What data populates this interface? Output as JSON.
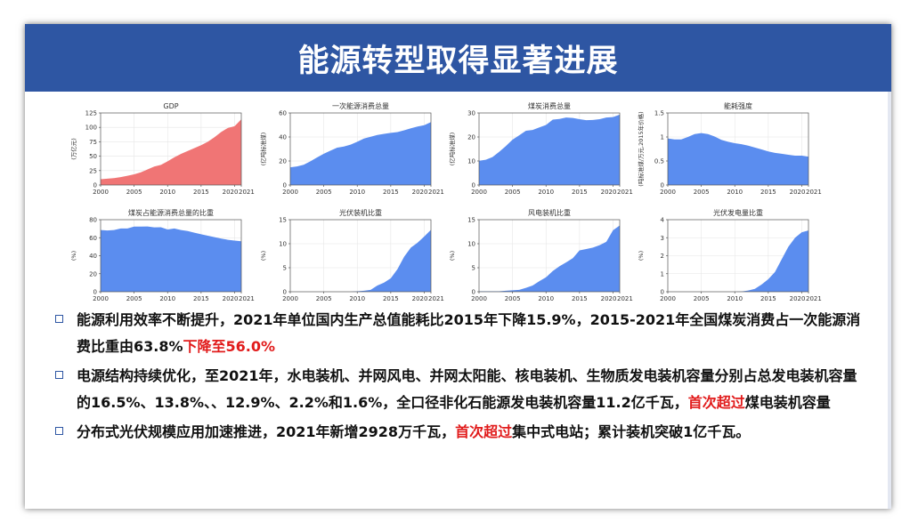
{
  "title": "能源转型取得显著进展",
  "bullets": [
    {
      "segments": [
        "能源利用效率不断提升，2021年单位国内生产总值能耗比2015年下降15.9%，2015-2021年全国煤炭消费占一次能源消费比重由63.8%",
        "下降至56.0%",
        ""
      ]
    },
    {
      "segments": [
        "电源结构持续优化，至2021年，水电装机、并网风电、并网太阳能、核电装机、生物质发电装机容量分别占总发电装机容量的16.5%、13.8%、、12.9%、2.2%和1.6%，全口径非化石能源发电装机容量11.2亿千瓦，",
        "首次超过",
        "煤电装机容量"
      ]
    },
    {
      "segments": [
        "分布式光伏规模应用加速推进，2021年新增2928万千瓦，",
        "首次超过",
        "集中式电站；累计装机突破1亿千瓦。"
      ]
    }
  ],
  "colors": {
    "title_bg": "#2e56a3",
    "gdp_fill": "#f07575",
    "area_fill": "#5b8def",
    "highlight": "#e11b1b"
  },
  "chart_data": [
    {
      "type": "area",
      "title": "GDP",
      "ylabel": "(万亿元)",
      "ylim": [
        0,
        125
      ],
      "yticks": [
        0,
        25,
        50,
        75,
        100,
        125
      ],
      "xticks": [
        "2000",
        "2005",
        "2010",
        "2015",
        "2020",
        "2021"
      ],
      "color": "#f07575",
      "x": [
        2000,
        2001,
        2002,
        2003,
        2004,
        2005,
        2006,
        2007,
        2008,
        2009,
        2010,
        2011,
        2012,
        2013,
        2014,
        2015,
        2016,
        2017,
        2018,
        2019,
        2020,
        2021
      ],
      "values": [
        10,
        11,
        12,
        13.7,
        16,
        18.5,
        22,
        27,
        32,
        35,
        41,
        48,
        54,
        59,
        64,
        69,
        75,
        83,
        92,
        99,
        102,
        114
      ]
    },
    {
      "type": "area",
      "title": "一次能源消费总量",
      "ylabel": "(亿吨标准煤)",
      "ylim": [
        0,
        60
      ],
      "yticks": [
        0,
        20,
        40,
        60
      ],
      "xticks": [
        "2000",
        "2005",
        "2010",
        "2015",
        "2020",
        "2021"
      ],
      "color": "#5b8def",
      "x": [
        2000,
        2001,
        2002,
        2003,
        2004,
        2005,
        2006,
        2007,
        2008,
        2009,
        2010,
        2011,
        2012,
        2013,
        2014,
        2015,
        2016,
        2017,
        2018,
        2019,
        2020,
        2021
      ],
      "values": [
        14.7,
        15.5,
        16.9,
        19.7,
        23,
        26,
        28.6,
        31.1,
        32,
        33.6,
        36,
        38.7,
        40.2,
        41.7,
        42.6,
        43.4,
        44.1,
        45.6,
        47.2,
        48.7,
        49.8,
        52.4
      ]
    },
    {
      "type": "area",
      "title": "煤炭消费总量",
      "ylabel": "(亿吨标准煤)",
      "ylim": [
        0,
        30
      ],
      "yticks": [
        0,
        10,
        20,
        30
      ],
      "xticks": [
        "2000",
        "2005",
        "2010",
        "2015",
        "2020",
        "2021"
      ],
      "color": "#5b8def",
      "x": [
        2000,
        2001,
        2002,
        2003,
        2004,
        2005,
        2006,
        2007,
        2008,
        2009,
        2010,
        2011,
        2012,
        2013,
        2014,
        2015,
        2016,
        2017,
        2018,
        2019,
        2020,
        2021
      ],
      "values": [
        10.1,
        10.5,
        11.6,
        13.8,
        16.2,
        18.9,
        20.7,
        22.6,
        22.9,
        24,
        25,
        27.2,
        27.5,
        28.1,
        27.9,
        27.4,
        27,
        27.1,
        27.4,
        28.1,
        28.3,
        29.3
      ]
    },
    {
      "type": "area",
      "title": "能耗强度",
      "ylabel": "(吨标准煤/万元,2015年价格)",
      "ylim": [
        0,
        1.5
      ],
      "yticks": [
        0,
        0.5,
        1,
        1.5
      ],
      "xticks": [
        "2000",
        "2005",
        "2010",
        "2015",
        "2020",
        "2021"
      ],
      "color": "#5b8def",
      "x": [
        2000,
        2001,
        2002,
        2003,
        2004,
        2005,
        2006,
        2007,
        2008,
        2009,
        2010,
        2011,
        2012,
        2013,
        2014,
        2015,
        2016,
        2017,
        2018,
        2019,
        2020,
        2021
      ],
      "values": [
        0.97,
        0.95,
        0.95,
        1,
        1.06,
        1.08,
        1.06,
        1.01,
        0.94,
        0.9,
        0.87,
        0.85,
        0.82,
        0.78,
        0.74,
        0.7,
        0.67,
        0.65,
        0.63,
        0.61,
        0.61,
        0.59
      ]
    },
    {
      "type": "area",
      "title": "煤炭占能源消费总量的比重",
      "ylabel": "(%)",
      "ylim": [
        0,
        80
      ],
      "yticks": [
        0,
        20,
        40,
        60,
        80
      ],
      "xticks": [
        "2000",
        "2005",
        "2010",
        "2015",
        "2020",
        "2021"
      ],
      "color": "#5b8def",
      "x": [
        2000,
        2001,
        2002,
        2003,
        2004,
        2005,
        2006,
        2007,
        2008,
        2009,
        2010,
        2011,
        2012,
        2013,
        2014,
        2015,
        2016,
        2017,
        2018,
        2019,
        2020,
        2021
      ],
      "values": [
        68.5,
        68,
        68.5,
        70.2,
        70.2,
        72.4,
        72.4,
        72.5,
        71.5,
        71.6,
        69.2,
        70.2,
        68.5,
        67.4,
        65.6,
        63.8,
        62.2,
        60.6,
        59,
        57.7,
        56.8,
        56
      ]
    },
    {
      "type": "area",
      "title": "光伏装机比重",
      "ylabel": "(%)",
      "ylim": [
        0,
        15
      ],
      "yticks": [
        0,
        5,
        10,
        15
      ],
      "xticks": [
        "2000",
        "2005",
        "2010",
        "2015",
        "2020",
        "2021"
      ],
      "color": "#5b8def",
      "x": [
        2000,
        2001,
        2002,
        2003,
        2004,
        2005,
        2006,
        2007,
        2008,
        2009,
        2010,
        2011,
        2012,
        2013,
        2014,
        2015,
        2016,
        2017,
        2018,
        2019,
        2020,
        2021
      ],
      "values": [
        0,
        0,
        0,
        0,
        0,
        0,
        0,
        0,
        0,
        0,
        0.1,
        0.2,
        0.4,
        1.3,
        1.9,
        2.8,
        4.7,
        7.3,
        9.2,
        10.2,
        11.5,
        12.9
      ]
    },
    {
      "type": "area",
      "title": "风电装机比重",
      "ylabel": "(%)",
      "ylim": [
        0,
        15
      ],
      "yticks": [
        0,
        5,
        10,
        15
      ],
      "xticks": [
        "2000",
        "2005",
        "2010",
        "2015",
        "2020",
        "2021"
      ],
      "color": "#5b8def",
      "x": [
        2000,
        2001,
        2002,
        2003,
        2004,
        2005,
        2006,
        2007,
        2008,
        2009,
        2010,
        2011,
        2012,
        2013,
        2014,
        2015,
        2016,
        2017,
        2018,
        2019,
        2020,
        2021
      ],
      "values": [
        0.1,
        0.1,
        0.1,
        0.1,
        0.2,
        0.3,
        0.4,
        0.8,
        1.3,
        2.2,
        3,
        4.3,
        5.3,
        6.1,
        7,
        8.6,
        8.9,
        9.2,
        9.7,
        10.4,
        12.8,
        13.8
      ]
    },
    {
      "type": "area",
      "title": "光伏发电量比重",
      "ylabel": "(%)",
      "ylim": [
        0,
        4
      ],
      "yticks": [
        0,
        1,
        2,
        3,
        4
      ],
      "xticks": [
        "2000",
        "2005",
        "2010",
        "2015",
        "2020",
        "2021"
      ],
      "color": "#5b8def",
      "x": [
        2000,
        2001,
        2002,
        2003,
        2004,
        2005,
        2006,
        2007,
        2008,
        2009,
        2010,
        2011,
        2012,
        2013,
        2014,
        2015,
        2016,
        2017,
        2018,
        2019,
        2020,
        2021
      ],
      "values": [
        0,
        0,
        0,
        0,
        0,
        0,
        0,
        0,
        0,
        0,
        0,
        0.01,
        0.07,
        0.16,
        0.4,
        0.7,
        1.1,
        1.8,
        2.5,
        3,
        3.3,
        3.4
      ]
    }
  ]
}
